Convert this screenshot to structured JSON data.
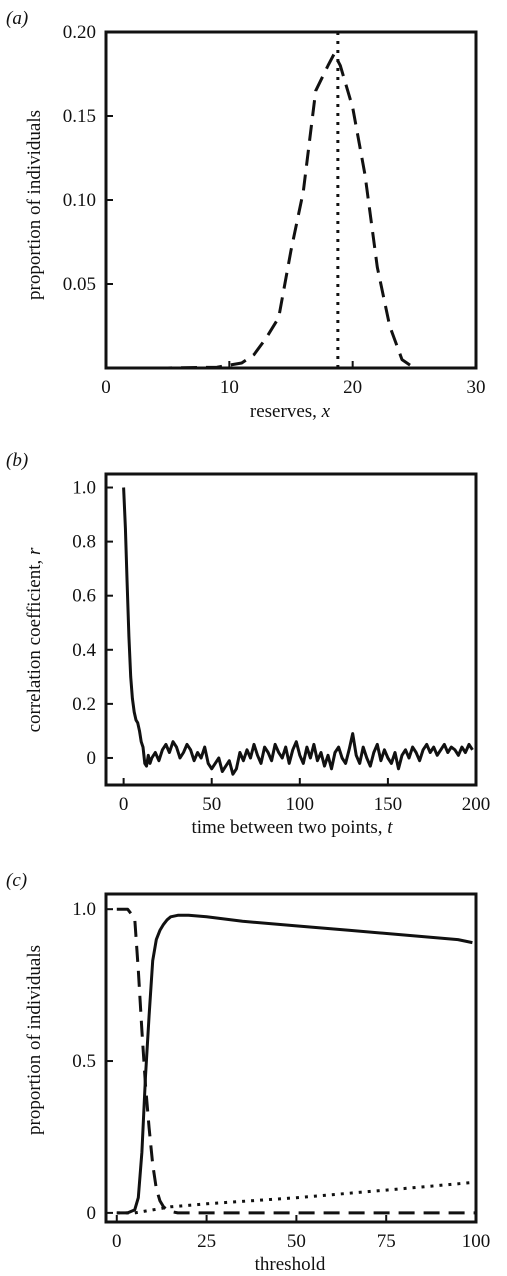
{
  "chart_data": [
    {
      "panel_label": "(a)",
      "type": "line",
      "xlabel": "reserves, ",
      "xlabel_var": "x",
      "ylabel": "proportion of individuals",
      "xlim": [
        0,
        30
      ],
      "ylim": [
        0,
        0.2
      ],
      "xticks": [
        "0",
        "10",
        "20",
        "30"
      ],
      "yticks": [
        "0.05",
        "0.10",
        "0.15",
        "0.20"
      ],
      "series": [
        {
          "style": "dashed",
          "x": [
            0,
            5,
            9,
            11,
            12,
            13,
            14,
            15,
            16,
            17,
            18,
            18.5,
            19,
            20,
            21,
            22,
            23,
            24,
            25,
            30
          ],
          "y": [
            0,
            0,
            0.0005,
            0.003,
            0.008,
            0.018,
            0.03,
            0.07,
            0.105,
            0.165,
            0.18,
            0.187,
            0.18,
            0.155,
            0.115,
            0.06,
            0.025,
            0.005,
            0,
            0
          ]
        }
      ],
      "vline": {
        "x": 18.8,
        "style": "dotted"
      }
    },
    {
      "panel_label": "(b)",
      "type": "line",
      "xlabel": "time between two points, ",
      "xlabel_var": "t",
      "ylabel": "correlation coefficient, ",
      "ylabel_var": "r",
      "xlim": [
        -10,
        200
      ],
      "ylim": [
        -0.1,
        1.05
      ],
      "xticks": [
        "0",
        "50",
        "100",
        "150",
        "200"
      ],
      "yticks": [
        "0",
        "0.2",
        "0.4",
        "0.6",
        "0.8",
        "1.0"
      ],
      "series": [
        {
          "style": "solid",
          "x": [
            0,
            1,
            2,
            3,
            4,
            5,
            6,
            7,
            8,
            9,
            10,
            11,
            12,
            13,
            14,
            15,
            16,
            18,
            20,
            22,
            24,
            26,
            28,
            30,
            32,
            34,
            36,
            38,
            40,
            42,
            44,
            46,
            48,
            50,
            52,
            54,
            56,
            58,
            60,
            62,
            64,
            66,
            68,
            70,
            72,
            74,
            76,
            78,
            80,
            82,
            84,
            86,
            88,
            90,
            92,
            94,
            96,
            98,
            100,
            102,
            104,
            106,
            108,
            110,
            112,
            114,
            116,
            118,
            120,
            122,
            124,
            126,
            128,
            130,
            132,
            134,
            136,
            138,
            140,
            142,
            144,
            146,
            148,
            150,
            152,
            154,
            156,
            158,
            160,
            162,
            164,
            166,
            168,
            170,
            172,
            174,
            176,
            178,
            180,
            182,
            184,
            186,
            188,
            190,
            192,
            194,
            196,
            198
          ],
          "y": [
            1.0,
            0.85,
            0.65,
            0.45,
            0.3,
            0.22,
            0.17,
            0.14,
            0.13,
            0.1,
            0.06,
            0.04,
            -0.02,
            -0.03,
            0.01,
            -0.02,
            0.0,
            0.02,
            -0.01,
            0.03,
            0.05,
            0.02,
            0.06,
            0.04,
            0.0,
            0.02,
            0.05,
            0.03,
            -0.01,
            0.02,
            0.0,
            0.04,
            -0.02,
            -0.04,
            -0.02,
            0.0,
            -0.05,
            -0.03,
            -0.01,
            -0.06,
            -0.04,
            0.02,
            -0.01,
            0.03,
            0.0,
            0.05,
            0.01,
            -0.02,
            0.04,
            0.02,
            -0.01,
            0.05,
            0.02,
            0.0,
            0.04,
            -0.02,
            0.03,
            0.06,
            0.01,
            -0.02,
            0.04,
            0.0,
            0.05,
            -0.01,
            0.02,
            -0.03,
            0.01,
            -0.04,
            0.02,
            0.04,
            0.0,
            -0.02,
            0.03,
            0.09,
            0.01,
            -0.02,
            0.04,
            0.0,
            -0.03,
            0.02,
            0.05,
            -0.01,
            0.03,
            0.0,
            -0.02,
            0.02,
            -0.04,
            0.01,
            0.03,
            0.0,
            0.04,
            0.02,
            -0.01,
            0.03,
            0.05,
            0.02,
            0.04,
            0.01,
            0.03,
            0.05,
            0.02,
            0.04,
            0.03,
            0.01,
            0.04,
            0.02,
            0.05,
            0.03
          ]
        }
      ]
    },
    {
      "panel_label": "(c)",
      "type": "line",
      "xlabel": "threshold",
      "ylabel": "proportion of individuals",
      "xlim": [
        -3,
        100
      ],
      "ylim": [
        -0.03,
        1.05
      ],
      "xticks": [
        "0",
        "25",
        "50",
        "75",
        "100"
      ],
      "yticks": [
        "0",
        "0.5",
        "1.0"
      ],
      "series": [
        {
          "style": "solid",
          "x": [
            0,
            3,
            5,
            6,
            7,
            8,
            9,
            10,
            11,
            12,
            13,
            14,
            15,
            17,
            20,
            25,
            35,
            50,
            65,
            80,
            95,
            99
          ],
          "y": [
            0,
            0,
            0.01,
            0.05,
            0.2,
            0.45,
            0.65,
            0.83,
            0.9,
            0.93,
            0.95,
            0.965,
            0.975,
            0.98,
            0.98,
            0.975,
            0.96,
            0.945,
            0.93,
            0.915,
            0.9,
            0.89
          ]
        },
        {
          "style": "dashed",
          "x": [
            0,
            3,
            5,
            6,
            7,
            8,
            9,
            10,
            11,
            12,
            13,
            14,
            15,
            17,
            20,
            30,
            50,
            75,
            100
          ],
          "y": [
            1.0,
            1.0,
            0.97,
            0.8,
            0.6,
            0.42,
            0.28,
            0.16,
            0.08,
            0.04,
            0.02,
            0.01,
            0.005,
            0,
            0,
            0,
            0,
            0,
            0
          ]
        },
        {
          "style": "dotted",
          "x": [
            0,
            5,
            10,
            15,
            25,
            50,
            75,
            99
          ],
          "y": [
            0,
            0.0,
            0.01,
            0.02,
            0.03,
            0.05,
            0.075,
            0.1
          ]
        }
      ]
    }
  ]
}
